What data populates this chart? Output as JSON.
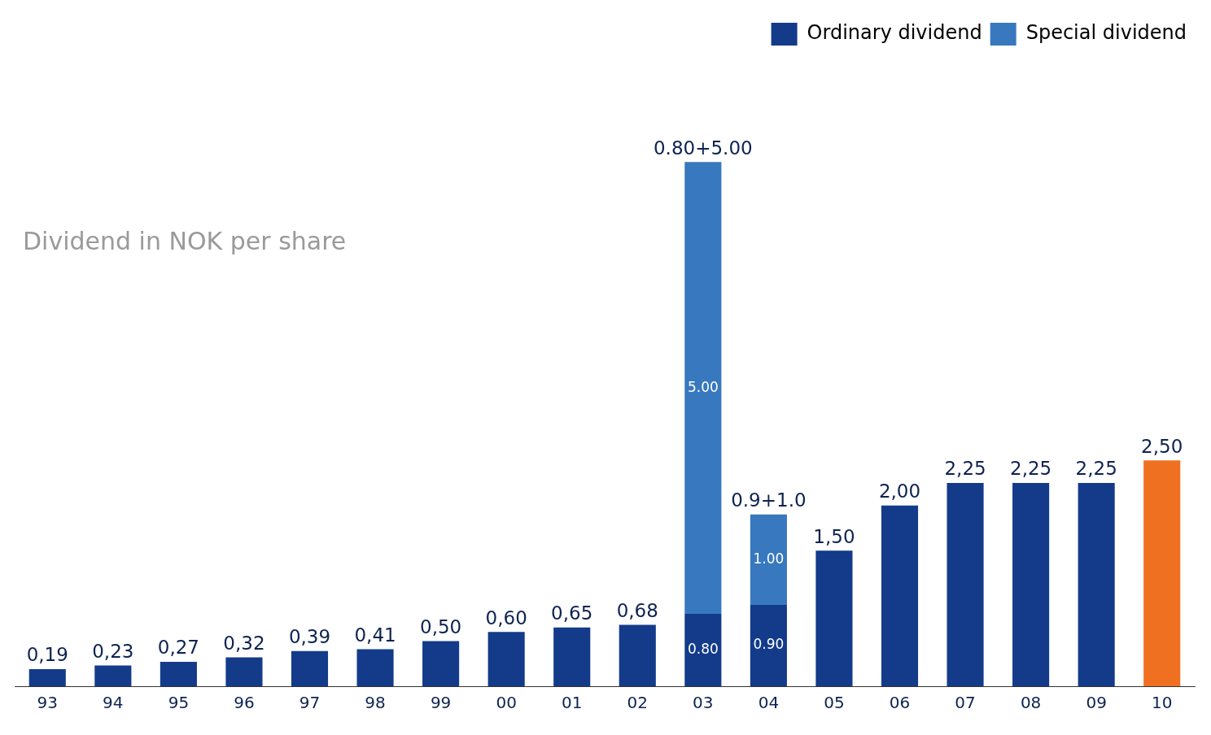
{
  "chart_data": {
    "type": "bar",
    "title": "Dividend in NOK per share",
    "stacked": true,
    "legend": "top right",
    "grid": false,
    "categories": [
      "93",
      "94",
      "95",
      "96",
      "97",
      "98",
      "99",
      "00",
      "01",
      "02",
      "03",
      "04",
      "05",
      "06",
      "07",
      "08",
      "09",
      "10"
    ],
    "series": [
      {
        "name": "Ordinary dividend",
        "color": "#133b8a",
        "colors": [
          "#133b8a",
          "#133b8a",
          "#133b8a",
          "#133b8a",
          "#133b8a",
          "#133b8a",
          "#133b8a",
          "#133b8a",
          "#133b8a",
          "#133b8a",
          "#133b8a",
          "#133b8a",
          "#133b8a",
          "#133b8a",
          "#133b8a",
          "#133b8a",
          "#133b8a",
          "#f07022"
        ],
        "values": [
          0.19,
          0.23,
          0.27,
          0.32,
          0.39,
          0.41,
          0.5,
          0.6,
          0.65,
          0.68,
          0.8,
          0.9,
          1.5,
          2.0,
          2.25,
          2.25,
          2.25,
          2.5
        ],
        "value_labels": [
          "0,19",
          "0,23",
          "0,27",
          "0,32",
          "0,39",
          "0,41",
          "0,50",
          "0,60",
          "0,65",
          "0,68",
          "0.80",
          "0.90",
          "1,50",
          "2,00",
          "2,25",
          "2,25",
          "2,25",
          "2,50"
        ]
      },
      {
        "name": "Special dividend",
        "color": "#3878be",
        "values": [
          null,
          null,
          null,
          null,
          null,
          null,
          null,
          null,
          null,
          null,
          5.0,
          1.0,
          null,
          null,
          null,
          null,
          null,
          null
        ],
        "value_labels": [
          null,
          null,
          null,
          null,
          null,
          null,
          null,
          null,
          null,
          null,
          "5.00",
          "1.00",
          null,
          null,
          null,
          null,
          null,
          null
        ]
      }
    ],
    "totals": [
      null,
      null,
      null,
      null,
      null,
      null,
      null,
      null,
      null,
      null,
      "0.80+5.00",
      "0.9+1.0",
      null,
      null,
      null,
      null,
      null,
      null
    ]
  }
}
